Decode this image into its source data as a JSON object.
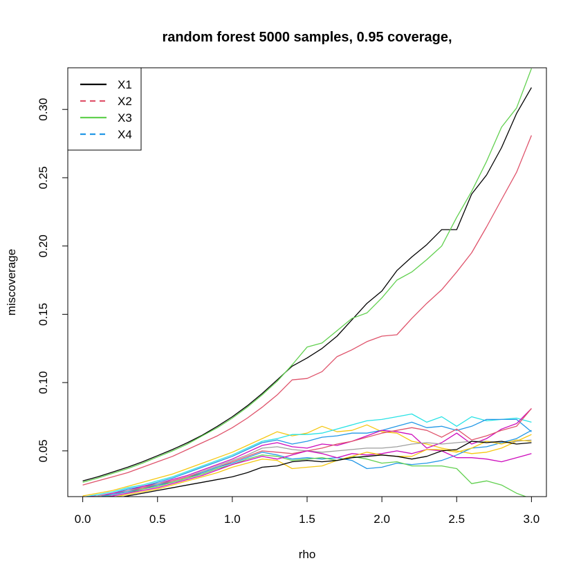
{
  "chart_data": {
    "type": "line",
    "title": "random forest 5000 samples, 0.95 coverage,",
    "xlabel": "rho",
    "ylabel": "miscoverage",
    "xlim": [
      -0.1,
      3.1
    ],
    "ylim": [
      0.0165,
      0.3305
    ],
    "xticks": [
      0.0,
      0.5,
      1.0,
      1.5,
      2.0,
      2.5,
      3.0
    ],
    "xtick_labels": [
      "0.0",
      "0.5",
      "1.0",
      "1.5",
      "2.0",
      "2.5",
      "3.0"
    ],
    "yticks": [
      0.05,
      0.1,
      0.15,
      0.2,
      0.25,
      0.3
    ],
    "ytick_labels": [
      "0.05",
      "0.10",
      "0.15",
      "0.20",
      "0.25",
      "0.30"
    ],
    "grid": false,
    "legend_position": "top-left",
    "legend": [
      {
        "name": "X1",
        "color": "#000000",
        "dash": "solid"
      },
      {
        "name": "X2",
        "color": "#DF536B",
        "dash": "dashed"
      },
      {
        "name": "X3",
        "color": "#61D04F",
        "dash": "solid"
      },
      {
        "name": "X4",
        "color": "#2297E6",
        "dash": "dashed"
      }
    ],
    "x": [
      0.0,
      0.1,
      0.2,
      0.3,
      0.4,
      0.5,
      0.6,
      0.7,
      0.8,
      0.9,
      1.0,
      1.1,
      1.2,
      1.3,
      1.4,
      1.5,
      1.6,
      1.7,
      1.8,
      1.9,
      2.0,
      2.1,
      2.2,
      2.3,
      2.4,
      2.5,
      2.6,
      2.7,
      2.8,
      2.9,
      3.0
    ],
    "series": [
      {
        "color": "#000000",
        "values": [
          0.028,
          0.031,
          0.0345,
          0.038,
          0.042,
          0.0465,
          0.051,
          0.056,
          0.0615,
          0.068,
          0.075,
          0.083,
          0.092,
          0.102,
          0.112,
          0.118,
          0.125,
          0.134,
          0.146,
          0.158,
          0.167,
          0.182,
          0.192,
          0.201,
          0.212,
          0.212,
          0.238,
          0.252,
          0.272,
          0.297,
          0.316
        ]
      },
      {
        "color": "#61D04F",
        "values": [
          0.027,
          0.03,
          0.0335,
          0.037,
          0.041,
          0.0455,
          0.05,
          0.055,
          0.061,
          0.067,
          0.074,
          0.082,
          0.091,
          0.101,
          0.113,
          0.126,
          0.129,
          0.138,
          0.147,
          0.151,
          0.162,
          0.175,
          0.181,
          0.19,
          0.2,
          0.221,
          0.24,
          0.262,
          0.287,
          0.301,
          0.33
        ]
      },
      {
        "color": "#DF536B",
        "values": [
          0.025,
          0.028,
          0.031,
          0.034,
          0.038,
          0.042,
          0.046,
          0.051,
          0.056,
          0.061,
          0.067,
          0.074,
          0.082,
          0.091,
          0.102,
          0.103,
          0.108,
          0.119,
          0.124,
          0.13,
          0.134,
          0.135,
          0.147,
          0.158,
          0.168,
          0.181,
          0.195,
          0.214,
          0.234,
          0.254,
          0.281
        ]
      },
      {
        "color": "#F5C710",
        "values": [
          0.017,
          0.019,
          0.021,
          0.024,
          0.027,
          0.03,
          0.033,
          0.037,
          0.041,
          0.045,
          0.049,
          0.054,
          0.059,
          0.064,
          0.061,
          0.063,
          0.068,
          0.064,
          0.065,
          0.069,
          0.064,
          0.063,
          0.057,
          0.055,
          0.052,
          0.05,
          0.048,
          0.049,
          0.052,
          0.057,
          0.062
        ]
      },
      {
        "color": "#28E2E5",
        "values": [
          0.016,
          0.018,
          0.02,
          0.023,
          0.025,
          0.028,
          0.031,
          0.035,
          0.039,
          0.043,
          0.047,
          0.052,
          0.057,
          0.059,
          0.062,
          0.062,
          0.063,
          0.066,
          0.069,
          0.072,
          0.073,
          0.075,
          0.077,
          0.071,
          0.075,
          0.068,
          0.075,
          0.072,
          0.073,
          0.074,
          0.071
        ]
      },
      {
        "color": "#2297E6",
        "values": [
          0.016,
          0.017,
          0.019,
          0.022,
          0.024,
          0.027,
          0.03,
          0.034,
          0.038,
          0.042,
          0.046,
          0.051,
          0.056,
          0.058,
          0.055,
          0.057,
          0.06,
          0.061,
          0.063,
          0.063,
          0.065,
          0.068,
          0.071,
          0.067,
          0.068,
          0.065,
          0.068,
          0.073,
          0.073,
          0.073,
          0.064
        ]
      },
      {
        "color": "#CD0BBC",
        "values": [
          0.016,
          0.017,
          0.019,
          0.021,
          0.024,
          0.026,
          0.029,
          0.032,
          0.036,
          0.04,
          0.044,
          0.049,
          0.054,
          0.056,
          0.053,
          0.052,
          0.055,
          0.054,
          0.057,
          0.061,
          0.065,
          0.064,
          0.062,
          0.052,
          0.056,
          0.063,
          0.055,
          0.059,
          0.066,
          0.07,
          0.081
        ]
      },
      {
        "color": "#9E9E9E",
        "values": [
          0.015,
          0.017,
          0.018,
          0.021,
          0.023,
          0.026,
          0.028,
          0.031,
          0.035,
          0.039,
          0.043,
          0.047,
          0.052,
          0.053,
          0.051,
          0.05,
          0.049,
          0.05,
          0.051,
          0.052,
          0.052,
          0.053,
          0.055,
          0.056,
          0.055,
          0.056,
          0.057,
          0.057,
          0.056,
          0.057,
          0.058
        ]
      },
      {
        "color": "#DF536B",
        "values": [
          0.015,
          0.016,
          0.018,
          0.02,
          0.023,
          0.025,
          0.028,
          0.031,
          0.034,
          0.038,
          0.042,
          0.046,
          0.05,
          0.049,
          0.048,
          0.05,
          0.052,
          0.055,
          0.057,
          0.06,
          0.063,
          0.065,
          0.067,
          0.065,
          0.06,
          0.066,
          0.058,
          0.061,
          0.065,
          0.068,
          0.081
        ]
      },
      {
        "color": "#2297E6",
        "values": [
          0.015,
          0.016,
          0.018,
          0.02,
          0.022,
          0.025,
          0.027,
          0.03,
          0.034,
          0.038,
          0.041,
          0.045,
          0.049,
          0.047,
          0.044,
          0.045,
          0.044,
          0.045,
          0.043,
          0.037,
          0.038,
          0.041,
          0.04,
          0.041,
          0.043,
          0.047,
          0.052,
          0.053,
          0.056,
          0.059,
          0.065
        ]
      },
      {
        "color": "#61D04F",
        "values": [
          0.015,
          0.016,
          0.017,
          0.019,
          0.022,
          0.024,
          0.027,
          0.03,
          0.033,
          0.037,
          0.04,
          0.044,
          0.047,
          0.046,
          0.043,
          0.044,
          0.045,
          0.043,
          0.046,
          0.044,
          0.041,
          0.042,
          0.039,
          0.039,
          0.039,
          0.037,
          0.026,
          0.028,
          0.025,
          0.019,
          0.015
        ]
      },
      {
        "color": "#CD0BBC",
        "values": [
          0.014,
          0.015,
          0.017,
          0.019,
          0.021,
          0.023,
          0.026,
          0.029,
          0.032,
          0.036,
          0.04,
          0.043,
          0.046,
          0.044,
          0.047,
          0.05,
          0.048,
          0.045,
          0.048,
          0.047,
          0.048,
          0.05,
          0.048,
          0.051,
          0.05,
          0.045,
          0.045,
          0.044,
          0.042,
          0.045,
          0.048
        ]
      },
      {
        "color": "#F5C710",
        "values": [
          0.014,
          0.015,
          0.016,
          0.018,
          0.02,
          0.022,
          0.025,
          0.028,
          0.031,
          0.034,
          0.038,
          0.041,
          0.044,
          0.043,
          0.037,
          0.038,
          0.039,
          0.043,
          0.046,
          0.049,
          0.047,
          0.046,
          0.046,
          0.051,
          0.051,
          0.049,
          0.052,
          0.057,
          0.055,
          0.058,
          0.057
        ]
      },
      {
        "color": "#000000",
        "values": [
          0.013,
          0.014,
          0.015,
          0.017,
          0.019,
          0.021,
          0.023,
          0.025,
          0.027,
          0.029,
          0.031,
          0.034,
          0.038,
          0.039,
          0.042,
          0.043,
          0.042,
          0.043,
          0.045,
          0.046,
          0.047,
          0.046,
          0.044,
          0.046,
          0.05,
          0.051,
          0.057,
          0.056,
          0.057,
          0.055,
          0.056
        ]
      }
    ]
  }
}
